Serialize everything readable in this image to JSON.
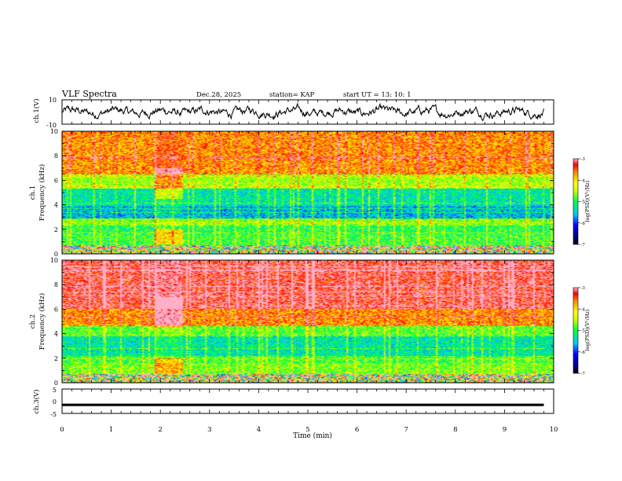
{
  "header": {
    "title": "VLF Spectra",
    "date": "Dec.28, 2025",
    "station": "station= KAP",
    "start": "start  UT  =   13: 10: 1"
  },
  "chart_data": [
    {
      "type": "line",
      "panel": "ch1-waveform",
      "ylabel": "ch.1(V)",
      "xlim": [
        0,
        10
      ],
      "ylim": [
        -10,
        10
      ],
      "yticks": [
        "10",
        "-10"
      ],
      "x_end": 9.8,
      "approx_range": [
        -6,
        6
      ],
      "color": "#000000"
    },
    {
      "type": "heatmap",
      "panel": "ch1-spectrogram",
      "ylabel": "ch.1\nFrequency (kHz)",
      "xlim": [
        0,
        10
      ],
      "ylim": [
        0,
        10
      ],
      "yticks": [
        "0",
        "2",
        "4",
        "6",
        "8",
        "10"
      ],
      "bands": [
        {
          "from": 0.0,
          "to": 0.7,
          "level": "mixed"
        },
        {
          "from": 0.7,
          "to": 1.6,
          "level": -4.9
        },
        {
          "from": 1.6,
          "to": 2.3,
          "level": -5.0
        },
        {
          "from": 2.3,
          "to": 2.9,
          "level": -4.7
        },
        {
          "from": 2.9,
          "to": 3.9,
          "level": -5.6
        },
        {
          "from": 3.9,
          "to": 5.3,
          "level": -5.3
        },
        {
          "from": 5.3,
          "to": 6.5,
          "level": -4.6
        },
        {
          "from": 6.5,
          "to": 10.0,
          "level": -3.7
        }
      ],
      "event": {
        "t_start": 1.9,
        "t_end": 2.45
      },
      "colorbar": {
        "label": "log(PSD)(V²/Hz)",
        "min": -7,
        "max": -3,
        "ticks": [
          "-3",
          "-4",
          "-5",
          "-6",
          "-7"
        ]
      }
    },
    {
      "type": "heatmap",
      "panel": "ch2-spectrogram",
      "ylabel": "ch.2\nFrequency (kHz)",
      "xlim": [
        0,
        10
      ],
      "ylim": [
        0,
        10
      ],
      "yticks": [
        "0",
        "2",
        "4",
        "6",
        "8",
        "10"
      ],
      "bands": [
        {
          "from": 0.0,
          "to": 0.7,
          "level": "mixed"
        },
        {
          "from": 0.7,
          "to": 1.6,
          "level": -4.7
        },
        {
          "from": 1.6,
          "to": 2.2,
          "level": -4.9
        },
        {
          "from": 2.2,
          "to": 3.8,
          "level": -5.3
        },
        {
          "from": 3.8,
          "to": 4.6,
          "level": -4.8
        },
        {
          "from": 4.6,
          "to": 6.0,
          "level": -3.7
        },
        {
          "from": 6.0,
          "to": 10.0,
          "level": -3.2
        }
      ],
      "event": {
        "t_start": 1.9,
        "t_end": 2.45
      },
      "colorbar": {
        "label": "log(PSD)(V²/Hz)",
        "min": -7,
        "max": -3,
        "ticks": [
          "-3",
          "-4",
          "-5",
          "-6",
          "-7"
        ]
      }
    },
    {
      "type": "line",
      "panel": "ch3-waveform",
      "ylabel": "ch.3(V)",
      "xlim": [
        0,
        10
      ],
      "ylim": [
        -5,
        5
      ],
      "yticks": [
        "5",
        "0",
        "-5"
      ],
      "x_end": 9.8,
      "band": [
        -2,
        -1
      ],
      "color": "#000000"
    }
  ],
  "xaxis": {
    "label": "Time  (min)",
    "ticks": [
      "0",
      "1",
      "2",
      "3",
      "4",
      "5",
      "6",
      "7",
      "8",
      "9",
      "10"
    ]
  }
}
